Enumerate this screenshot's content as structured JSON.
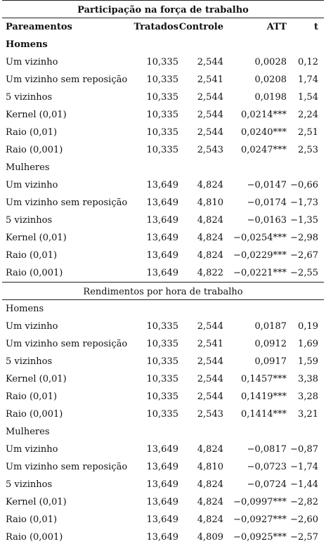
{
  "panels": [
    {
      "title": "Participação na força de trabalho",
      "groups": [
        {
          "name": "Homens",
          "rows": [
            [
              "Um vizinho",
              "10,335",
              "2,544",
              "0,0028",
              "0,12"
            ],
            [
              "Um vizinho sem reposição",
              "10,335",
              "2,541",
              "0,0208",
              "1,74"
            ],
            [
              "5 vizinhos",
              "10,335",
              "2,544",
              "0,0198",
              "1,54"
            ],
            [
              "Kernel (0,01)",
              "10,335",
              "2,544",
              "0,0214***",
              "2,24"
            ],
            [
              "Raio (0,01)",
              "10,335",
              "2,544",
              "0,0240***",
              "2,51"
            ],
            [
              "Raio (0,001)",
              "10,335",
              "2,543",
              "0,0247***",
              "2,53"
            ]
          ]
        },
        {
          "name": "Mulheres",
          "rows": [
            [
              "Um vizinho",
              "13,649",
              "4,824",
              "−0,0147",
              "−0,66"
            ],
            [
              "Um vizinho sem reposição",
              "13,649",
              "4,810",
              "−0,0174",
              "−1,73"
            ],
            [
              "5 vizinhos",
              "13,649",
              "4,824",
              "−0,0163",
              "−1,35"
            ],
            [
              "Kernel (0,01)",
              "13,649",
              "4,824",
              "−0,0254***",
              "−2,98"
            ],
            [
              "Raio (0,01)",
              "13,649",
              "4,824",
              "−0,0229***",
              "−2,67"
            ],
            [
              "Raio (0,001)",
              "13,649",
              "4,822",
              "−0,0221***",
              "−2,55"
            ]
          ]
        }
      ]
    },
    {
      "title": "Rendimentos por hora de trabalho",
      "groups": [
        {
          "name": "Homens",
          "rows": [
            [
              "Um vizinho",
              "10,335",
              "2,544",
              "0,0187",
              "0,19"
            ],
            [
              "Um vizinho sem reposição",
              "10,335",
              "2,541",
              "0,0912",
              "1,69"
            ],
            [
              "5 vizinhos",
              "10,335",
              "2,544",
              "0,0917",
              "1,59"
            ],
            [
              "Kernel (0,01)",
              "10,335",
              "2,544",
              "0,1457***",
              "3,38"
            ],
            [
              "Raio (0,01)",
              "10,335",
              "2,544",
              "0,1419***",
              "3,28"
            ],
            [
              "Raio (0,001)",
              "10,335",
              "2,543",
              "0,1414***",
              "3,21"
            ]
          ]
        },
        {
          "name": "Mulheres",
          "rows": [
            [
              "Um vizinho",
              "13,649",
              "4,824",
              "−0,0817",
              "−0,87"
            ],
            [
              "Um vizinho sem reposição",
              "13,649",
              "4,810",
              "−0,0723",
              "−1,74"
            ],
            [
              "5 vizinhos",
              "13,649",
              "4,824",
              "−0,0724",
              "−1,44"
            ],
            [
              "Kernel (0,01)",
              "13,649",
              "4,824",
              "−0,0997***",
              "−2,82"
            ],
            [
              "Raio (0,01)",
              "13,649",
              "4,824",
              "−0,0927***",
              "−2,60"
            ],
            [
              "Raio (0,001)",
              "13,649",
              "4,809",
              "−0,0925***",
              "−2,57"
            ]
          ]
        }
      ]
    }
  ],
  "headers": [
    "Pareamentos",
    "Tratados",
    "Controle",
    "ATT",
    "t"
  ]
}
